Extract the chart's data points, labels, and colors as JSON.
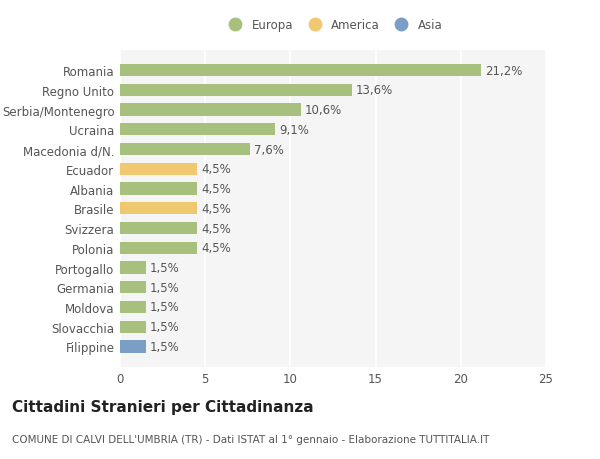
{
  "categories": [
    "Filippine",
    "Slovacchia",
    "Moldova",
    "Germania",
    "Portogallo",
    "Polonia",
    "Svizzera",
    "Brasile",
    "Albania",
    "Ecuador",
    "Macedonia d/N.",
    "Ucraina",
    "Serbia/Montenegro",
    "Regno Unito",
    "Romania"
  ],
  "values": [
    1.5,
    1.5,
    1.5,
    1.5,
    1.5,
    4.5,
    4.5,
    4.5,
    4.5,
    4.5,
    7.6,
    9.1,
    10.6,
    13.6,
    21.2
  ],
  "colors": [
    "#7b9fc4",
    "#a8c07e",
    "#a8c07e",
    "#a8c07e",
    "#a8c07e",
    "#a8c07e",
    "#a8c07e",
    "#f0c870",
    "#a8c07e",
    "#f0c870",
    "#a8c07e",
    "#a8c07e",
    "#a8c07e",
    "#a8c07e",
    "#a8c07e"
  ],
  "labels": [
    "1,5%",
    "1,5%",
    "1,5%",
    "1,5%",
    "1,5%",
    "4,5%",
    "4,5%",
    "4,5%",
    "4,5%",
    "4,5%",
    "7,6%",
    "9,1%",
    "10,6%",
    "13,6%",
    "21,2%"
  ],
  "legend_labels": [
    "Europa",
    "America",
    "Asia"
  ],
  "legend_colors": [
    "#a8c07e",
    "#f0c870",
    "#7b9fc4"
  ],
  "title": "Cittadini Stranieri per Cittadinanza",
  "subtitle": "COMUNE DI CALVI DELL'UMBRIA (TR) - Dati ISTAT al 1° gennaio - Elaborazione TUTTITALIA.IT",
  "xlim": [
    0,
    25
  ],
  "xticks": [
    0,
    5,
    10,
    15,
    20,
    25
  ],
  "background_color": "#ffffff",
  "plot_bg_color": "#f5f5f5",
  "grid_color": "#ffffff",
  "bar_height": 0.62,
  "label_fontsize": 8.5,
  "ytick_fontsize": 8.5,
  "xtick_fontsize": 8.5,
  "title_fontsize": 11,
  "subtitle_fontsize": 7.5,
  "text_color": "#555555"
}
